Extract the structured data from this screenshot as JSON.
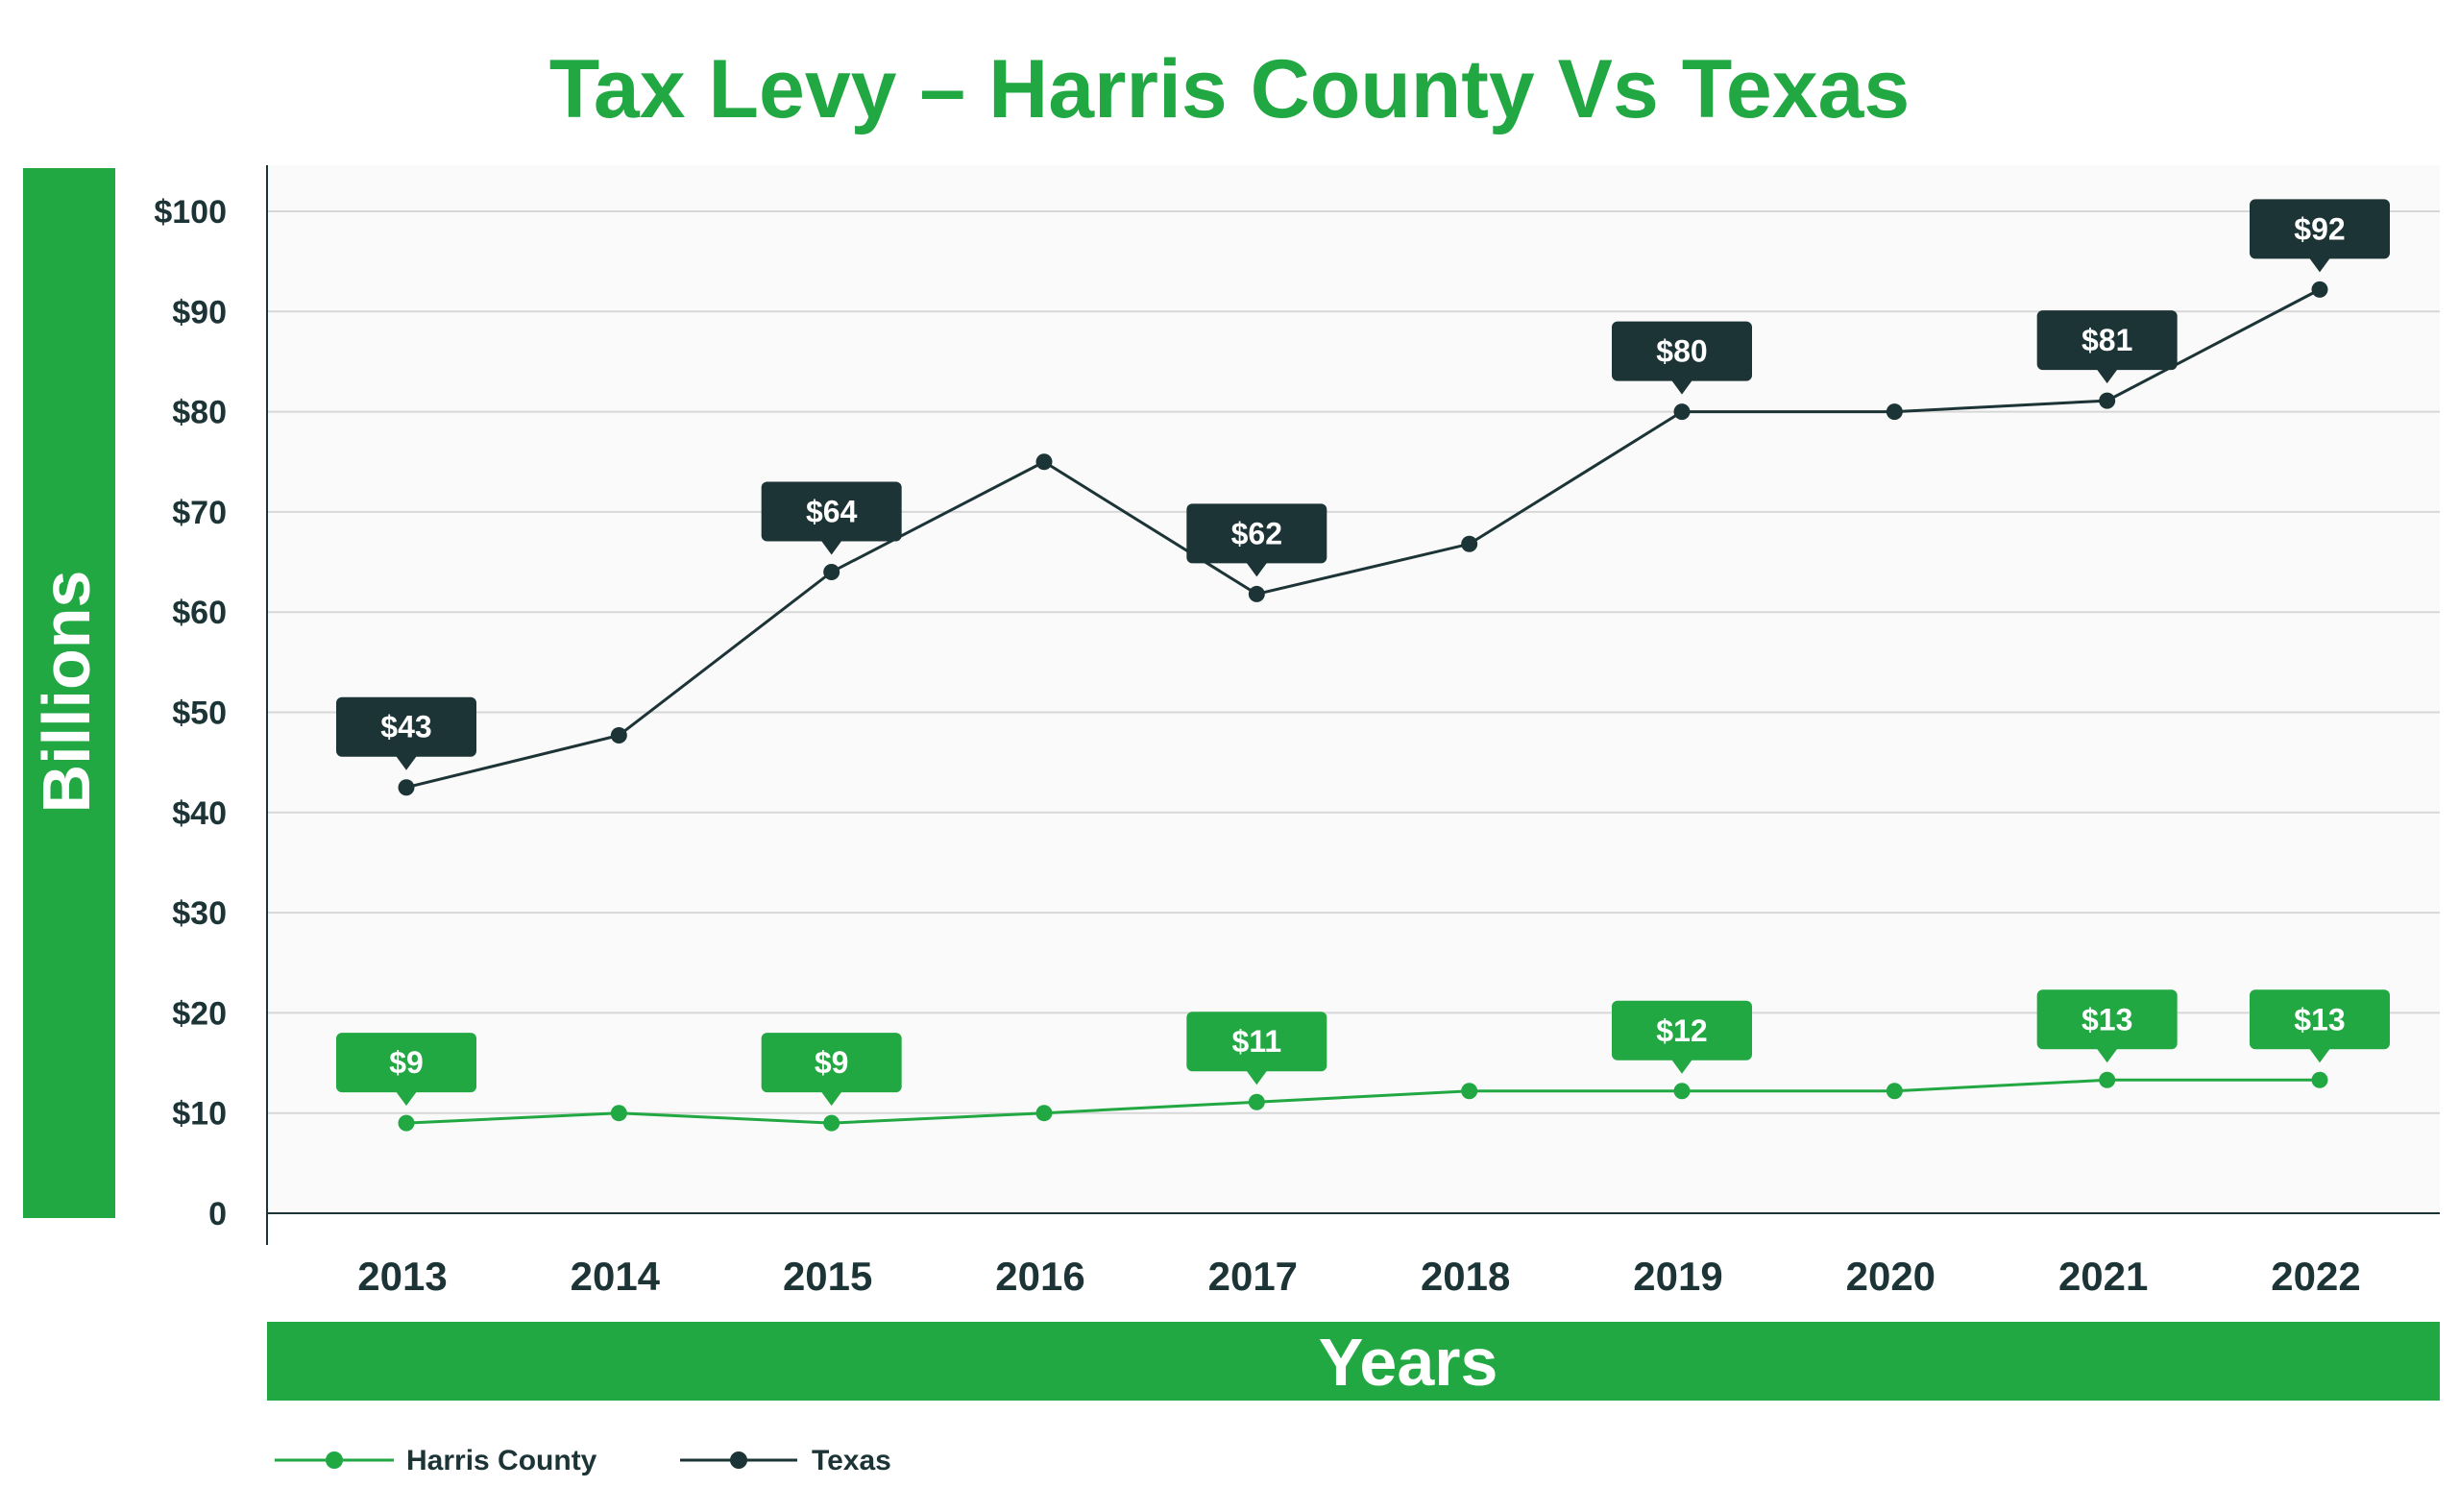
{
  "chart_data": {
    "type": "line",
    "title": "Tax Levy – Harris County Vs Texas",
    "xlabel": "Years",
    "ylabel": "Billions",
    "categories": [
      "2013",
      "2014",
      "2015",
      "2016",
      "2017",
      "2018",
      "2019",
      "2020",
      "2021",
      "2022"
    ],
    "ylim": [
      0,
      100
    ],
    "yticks": [
      0,
      10,
      20,
      30,
      40,
      50,
      60,
      70,
      80,
      90,
      100
    ],
    "ytick_labels": [
      "0",
      "$10",
      "$20",
      "$30",
      "$40",
      "$50",
      "$60",
      "$70",
      "$80",
      "$90",
      "$100"
    ],
    "grid": true,
    "legend_position": "bottom-left",
    "series": [
      {
        "name": "Harris County",
        "color": "#22a843",
        "values": [
          9,
          10,
          9,
          10,
          11.1,
          12.2,
          12.2,
          12.2,
          13.3,
          13.3
        ],
        "labels": [
          "$9",
          null,
          "$9",
          null,
          "$11",
          null,
          "$12",
          null,
          "$13",
          "$13"
        ]
      },
      {
        "name": "Texas",
        "color": "#1d3436",
        "values": [
          42.5,
          47.7,
          64,
          75,
          61.8,
          66.8,
          80,
          80,
          81.1,
          92.2
        ],
        "labels": [
          "$43",
          null,
          "$64",
          null,
          "$62",
          null,
          "$80",
          null,
          "$81",
          "$92"
        ]
      }
    ]
  },
  "colors": {
    "accent": "#22a843",
    "dark": "#1d3436",
    "grid": "#d7d7d7",
    "plot_bg": "#fafafa"
  }
}
